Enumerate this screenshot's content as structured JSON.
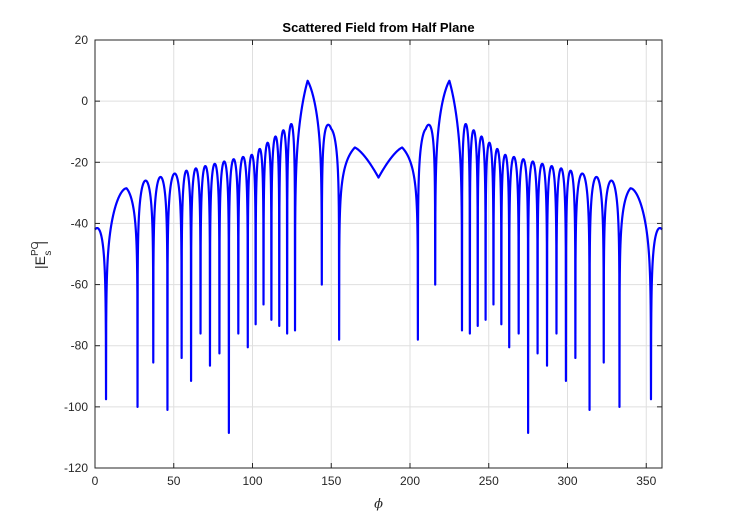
{
  "chart_data": {
    "type": "line",
    "title": "Scattered Field from Half Plane",
    "xlabel": "ϕ",
    "ylabel": {
      "main": "|E",
      "subscript": "s",
      "superscript": "PO",
      "close": "|"
    },
    "xlim": [
      0,
      360
    ],
    "ylim": [
      -120,
      20
    ],
    "xticks": [
      0,
      50,
      100,
      150,
      200,
      250,
      300,
      350
    ],
    "yticks": [
      20,
      0,
      -20,
      -40,
      -60,
      -80,
      -100,
      -120
    ],
    "grid": true,
    "line_color": "#0000ff",
    "series": [
      {
        "name": "",
        "shape_params": {
          "env": [
            [
              0,
              -42
            ],
            [
              20,
              -27.5
            ],
            [
              100,
              -17.5
            ],
            [
              127,
              -6.5
            ],
            [
              135,
              6.7
            ],
            [
              150,
              -9
            ],
            [
              165,
              -11
            ],
            [
              180,
              -25
            ]
          ],
          "nulls": [
            7,
            27,
            37,
            46,
            55,
            61,
            67,
            73,
            79,
            85,
            91,
            97,
            102,
            107,
            112,
            117,
            122,
            127,
            144,
            155
          ],
          "null_depth": [
            -97.5,
            -100,
            -85.5,
            -101,
            -84,
            -91.5,
            -76,
            -86.5,
            -82.5,
            -108.5,
            -76,
            -80.5,
            -73,
            -66.5,
            -71.5,
            -73.5,
            -76,
            -75,
            -60,
            -78
          ]
        }
      }
    ]
  }
}
